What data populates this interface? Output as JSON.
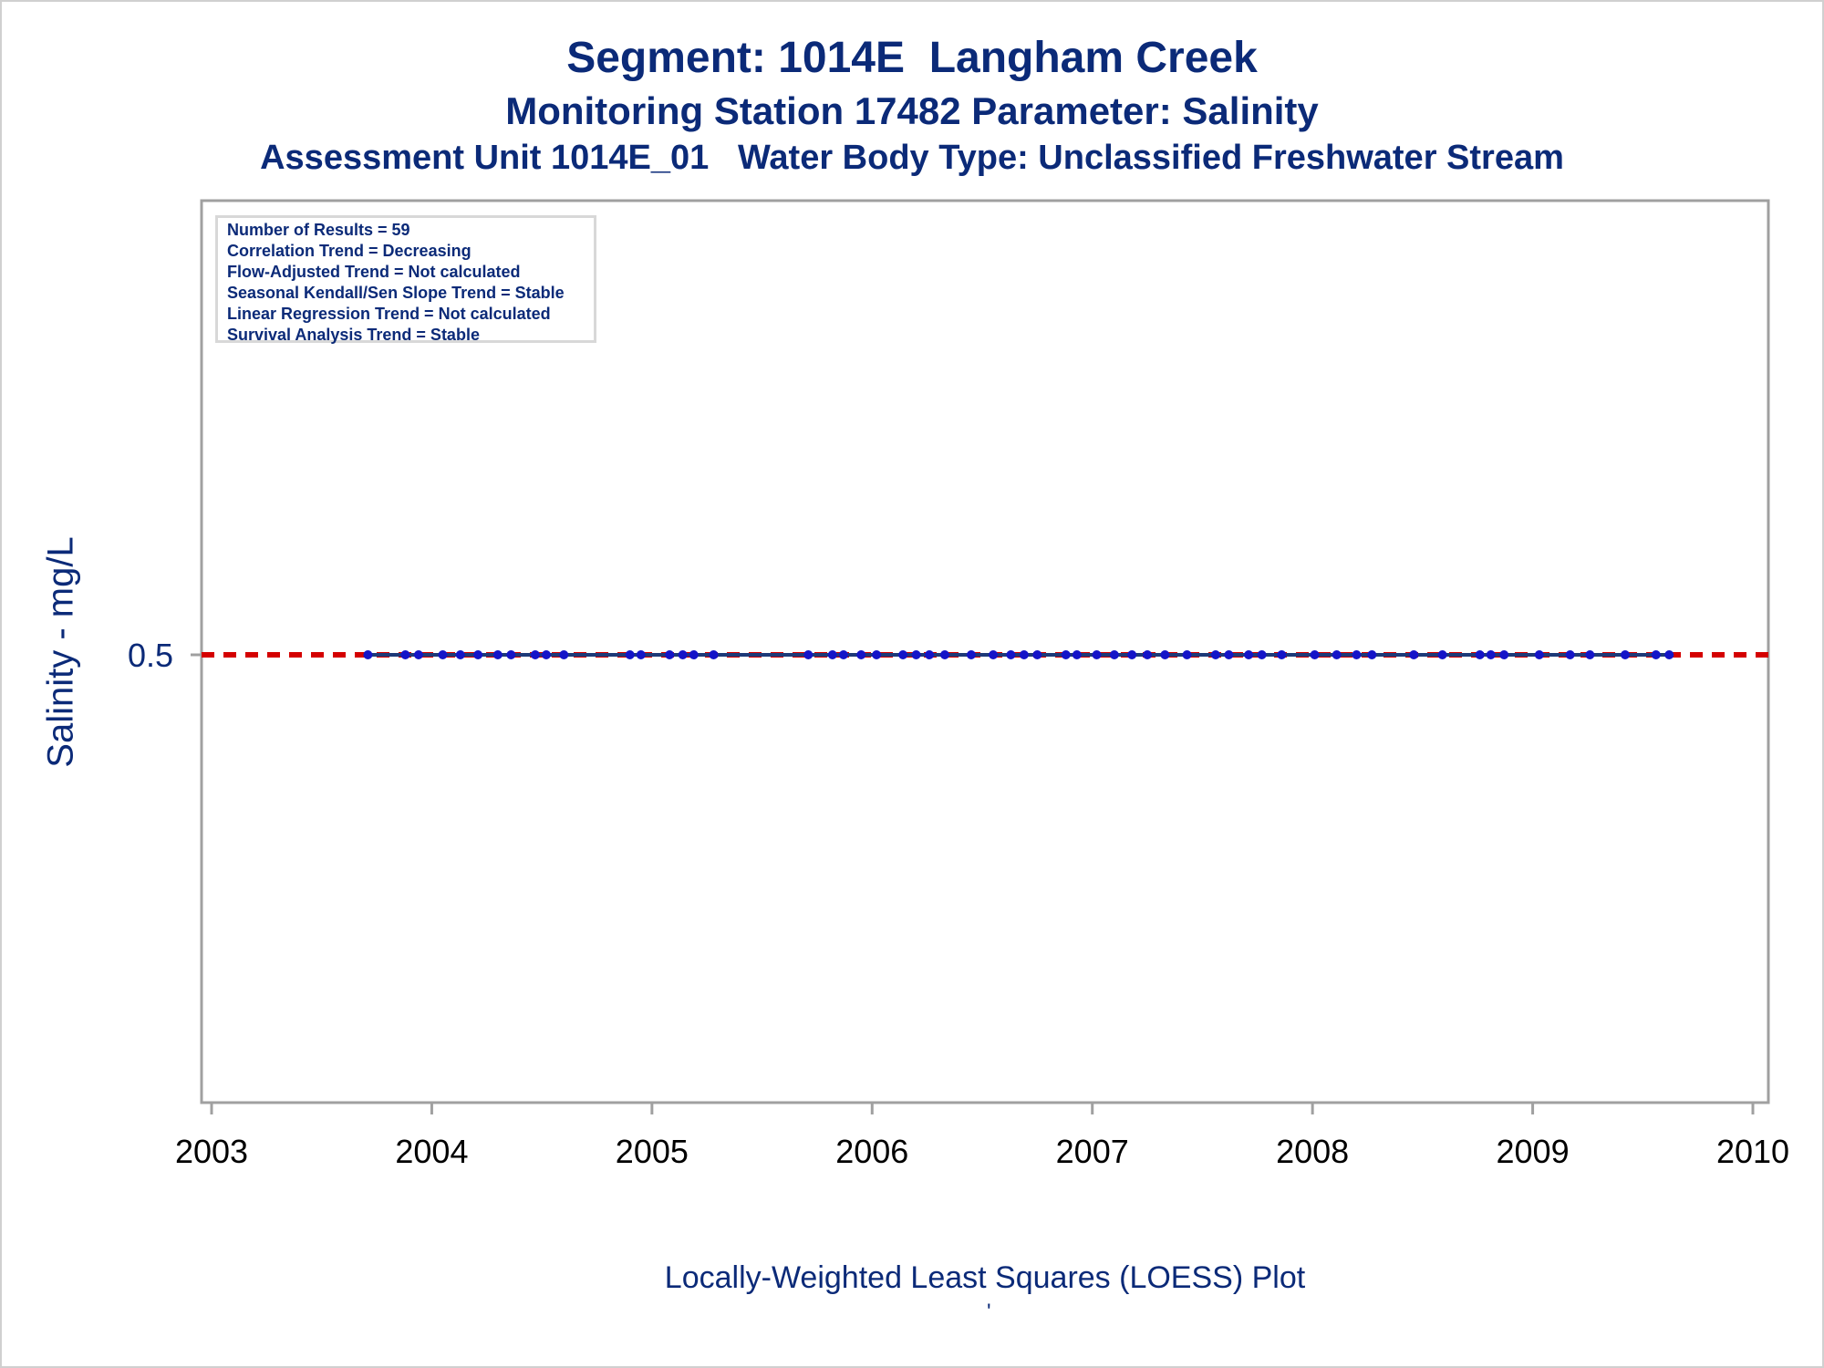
{
  "titles": {
    "line1": "Segment: 1014E  Langham Creek",
    "line2": "Monitoring Station 17482 Parameter: Salinity",
    "line3": "Assessment Unit 1014E_01   Water Body Type: Unclassified Freshwater Stream"
  },
  "stats": [
    "Number of Results = 59",
    "Correlation Trend = Decreasing",
    "Flow-Adjusted Trend = Not calculated",
    "Seasonal Kendall/Sen Slope Trend = Stable",
    "Linear Regression Trend = Not calculated",
    "Survival Analysis Trend = Stable"
  ],
  "footnote": "Locally-Weighted Least Squares (LOESS) Plot",
  "footnote_mark": "'",
  "colors": {
    "text": "#0b2a78",
    "points": "#1414c8",
    "loess_line": "#1e3a78",
    "reference_line": "#d40000",
    "axis": "#a0a0a0"
  },
  "chart_data": {
    "type": "scatter",
    "xlabel": "",
    "ylabel": "Salinity - mg/L",
    "xlim": [
      2003,
      2010
    ],
    "x_ticks": [
      "2003",
      "2004",
      "2005",
      "2006",
      "2007",
      "2008",
      "2009",
      "2010"
    ],
    "y_ticks": [
      {
        "value": 0.5,
        "label": "0.5"
      }
    ],
    "ylim_note": "single tick at 0.5 located at middle of axis range",
    "ylim": [
      0.0,
      0.9
    ],
    "grid": false,
    "reference_line": {
      "y": 0.5,
      "style": "dashed"
    },
    "loess_line": {
      "y": 0.5,
      "x_start": 2003.71,
      "x_end": 2009.62
    },
    "points_x": [
      2003.71,
      2003.88,
      2003.94,
      2004.05,
      2004.13,
      2004.21,
      2004.3,
      2004.36,
      2004.47,
      2004.52,
      2004.6,
      2004.9,
      2004.95,
      2005.08,
      2005.14,
      2005.19,
      2005.28,
      2005.71,
      2005.82,
      2005.87,
      2005.95,
      2006.02,
      2006.14,
      2006.2,
      2006.26,
      2006.33,
      2006.45,
      2006.55,
      2006.63,
      2006.69,
      2006.75,
      2006.88,
      2006.93,
      2007.02,
      2007.1,
      2007.18,
      2007.25,
      2007.33,
      2007.43,
      2007.56,
      2007.62,
      2007.71,
      2007.77,
      2007.86,
      2008.01,
      2008.11,
      2008.2,
      2008.27,
      2008.46,
      2008.59,
      2008.76,
      2008.81,
      2008.87,
      2009.03,
      2009.17,
      2009.26,
      2009.42,
      2009.56,
      2009.62
    ],
    "points_y_value": 0.5
  }
}
